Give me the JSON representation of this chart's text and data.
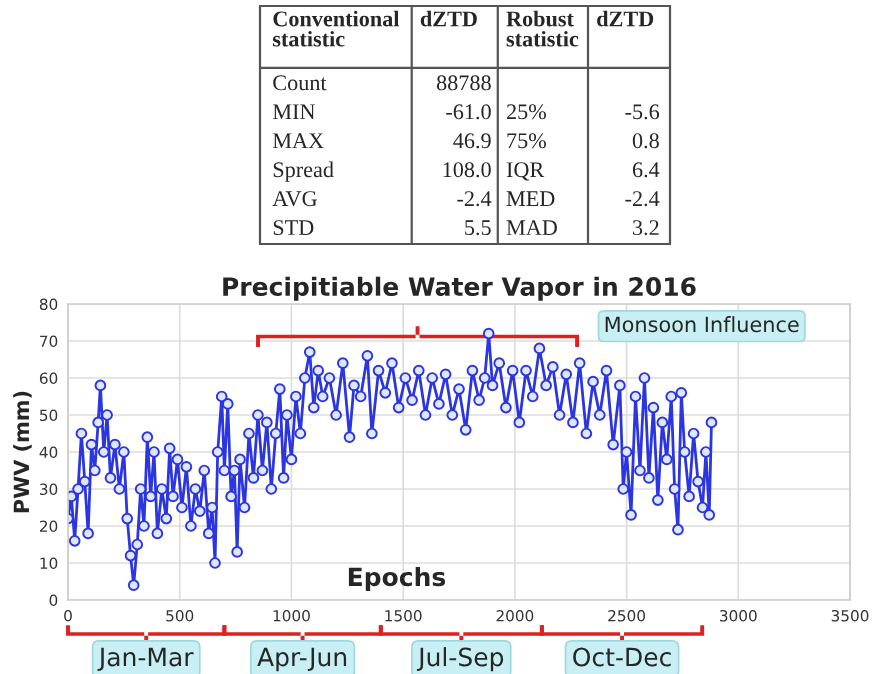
{
  "chart_data": [
    {
      "type": "other",
      "annotations": [
        "Conventional\nstatistic",
        "dZTD",
        "Robust\nstatistic",
        "dZTD",
        "Count",
        "88788",
        null,
        null,
        "MIN",
        "-61.0",
        "25%",
        "-5.6",
        "MAX",
        "46.9",
        "75%",
        "0.8",
        "Spread",
        "108.0",
        "IQR",
        "6.4",
        "AVG",
        "-2.4",
        "MED",
        "-2.4",
        "STD",
        "5.5",
        "MAD",
        "3.2"
      ]
    },
    {
      "type": "line",
      "title": "Precipitiable Water Vapor in 2016",
      "xlabel": "Epochs",
      "ylabel": "PWV (mm)",
      "xlim": [
        0,
        3500
      ],
      "xticks": [
        0,
        500,
        1000,
        1500,
        2000,
        2500,
        3000,
        3500
      ],
      "ylim": [
        0,
        80
      ],
      "yticks": [
        0,
        10,
        20,
        30,
        40,
        50,
        60,
        70,
        80
      ],
      "grid": true,
      "marker": "circle",
      "line_style": "solid",
      "annotations": [
        "Monsoon Influence",
        "Jan-Mar",
        "Apr-Jun",
        "Jul-Sep",
        "Oct-Dec"
      ],
      "series": [
        {
          "color": "#2b35e0",
          "x": [
            0,
            15,
            30,
            45,
            60,
            75,
            90,
            105,
            120,
            135,
            145,
            160,
            175,
            190,
            210,
            230,
            250,
            265,
            280,
            294,
            310,
            325,
            340,
            355,
            370,
            385,
            400,
            420,
            440,
            455,
            470,
            490,
            510,
            530,
            550,
            570,
            590,
            610,
            630,
            645,
            658,
            670,
            688,
            700,
            715,
            730,
            745,
            757,
            770,
            790,
            810,
            830,
            850,
            870,
            890,
            910,
            930,
            948,
            965,
            980,
            1000,
            1020,
            1040,
            1060,
            1082,
            1100,
            1120,
            1140,
            1170,
            1200,
            1230,
            1260,
            1280,
            1310,
            1340,
            1360,
            1390,
            1420,
            1450,
            1480,
            1510,
            1540,
            1570,
            1600,
            1630,
            1660,
            1690,
            1720,
            1750,
            1780,
            1810,
            1840,
            1865,
            1883,
            1900,
            1930,
            1960,
            1990,
            2020,
            2050,
            2080,
            2110,
            2140,
            2170,
            2200,
            2230,
            2260,
            2290,
            2320,
            2350,
            2380,
            2410,
            2440,
            2470,
            2485,
            2500,
            2520,
            2540,
            2560,
            2580,
            2600,
            2620,
            2640,
            2660,
            2680,
            2700,
            2715,
            2730,
            2745,
            2760,
            2780,
            2800,
            2820,
            2840,
            2855,
            2870,
            2880
          ],
          "values": [
            22,
            28,
            16,
            30,
            45,
            32,
            18,
            42,
            35,
            48,
            58,
            40,
            50,
            33,
            42,
            30,
            40,
            22,
            12,
            4,
            15,
            30,
            20,
            44,
            28,
            40,
            18,
            30,
            22,
            41,
            28,
            38,
            25,
            36,
            20,
            30,
            24,
            35,
            18,
            25,
            10,
            40,
            55,
            35,
            53,
            28,
            35,
            13,
            38,
            25,
            45,
            33,
            50,
            35,
            48,
            30,
            45,
            57,
            33,
            50,
            38,
            55,
            45,
            60,
            67,
            52,
            62,
            55,
            60,
            50,
            64,
            44,
            58,
            55,
            66,
            45,
            62,
            56,
            64,
            52,
            60,
            54,
            62,
            50,
            60,
            53,
            61,
            50,
            57,
            46,
            62,
            54,
            60,
            72,
            58,
            64,
            52,
            62,
            48,
            62,
            55,
            68,
            58,
            63,
            50,
            61,
            48,
            64,
            45,
            59,
            50,
            62,
            42,
            58,
            30,
            40,
            23,
            55,
            35,
            60,
            33,
            52,
            27,
            48,
            38,
            55,
            30,
            19,
            56,
            40,
            28,
            45,
            32,
            25,
            40,
            23,
            48
          ]
        }
      ]
    }
  ]
}
